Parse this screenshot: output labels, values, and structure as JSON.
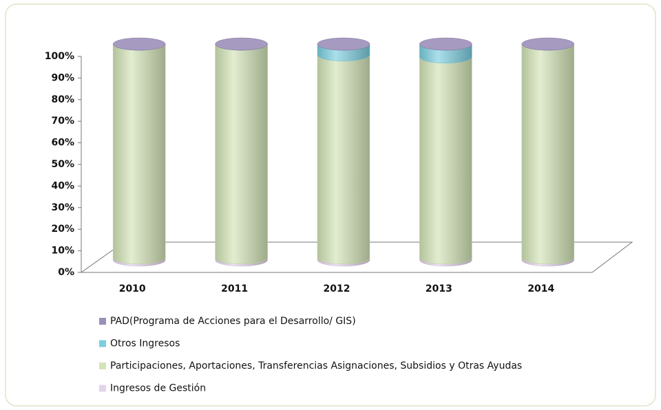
{
  "chart_data": {
    "type": "cylinder",
    "categories": [
      "2010",
      "2011",
      "2012",
      "2013",
      "2014"
    ],
    "series": [
      {
        "name": "Ingresos de Gestión",
        "color": "#e4d3ec",
        "values": [
          1,
          1,
          1,
          1,
          1
        ]
      },
      {
        "name": "Participaciones, Aportaciones, Transferencias Asignaciones, Subsidios y Otras Ayudas",
        "color": "#d3e4b6",
        "values": [
          99,
          99,
          94,
          93,
          99
        ]
      },
      {
        "name": "Otros Ingresos",
        "color": "#7ccfe0",
        "values": [
          0,
          0,
          5,
          6,
          0
        ]
      },
      {
        "name": "PAD(Programa de Acciones para el Desarrollo/ GIS)",
        "color": "#9c8fba",
        "values": [
          0,
          0,
          0,
          0,
          0
        ]
      }
    ],
    "ylim": [
      0,
      100
    ],
    "yticks": [
      {
        "value": 0,
        "label": "0%"
      },
      {
        "value": 10,
        "label": "10%"
      },
      {
        "value": 20,
        "label": "20%"
      },
      {
        "value": 30,
        "label": "30%"
      },
      {
        "value": 40,
        "label": "40%"
      },
      {
        "value": 50,
        "label": "50%"
      },
      {
        "value": 60,
        "label": "60%"
      },
      {
        "value": 70,
        "label": "70%"
      },
      {
        "value": 80,
        "label": "80%"
      },
      {
        "value": 90,
        "label": "90%"
      },
      {
        "value": 100,
        "label": "100%"
      }
    ],
    "legend": "bottom",
    "legend_order": "reverse"
  }
}
